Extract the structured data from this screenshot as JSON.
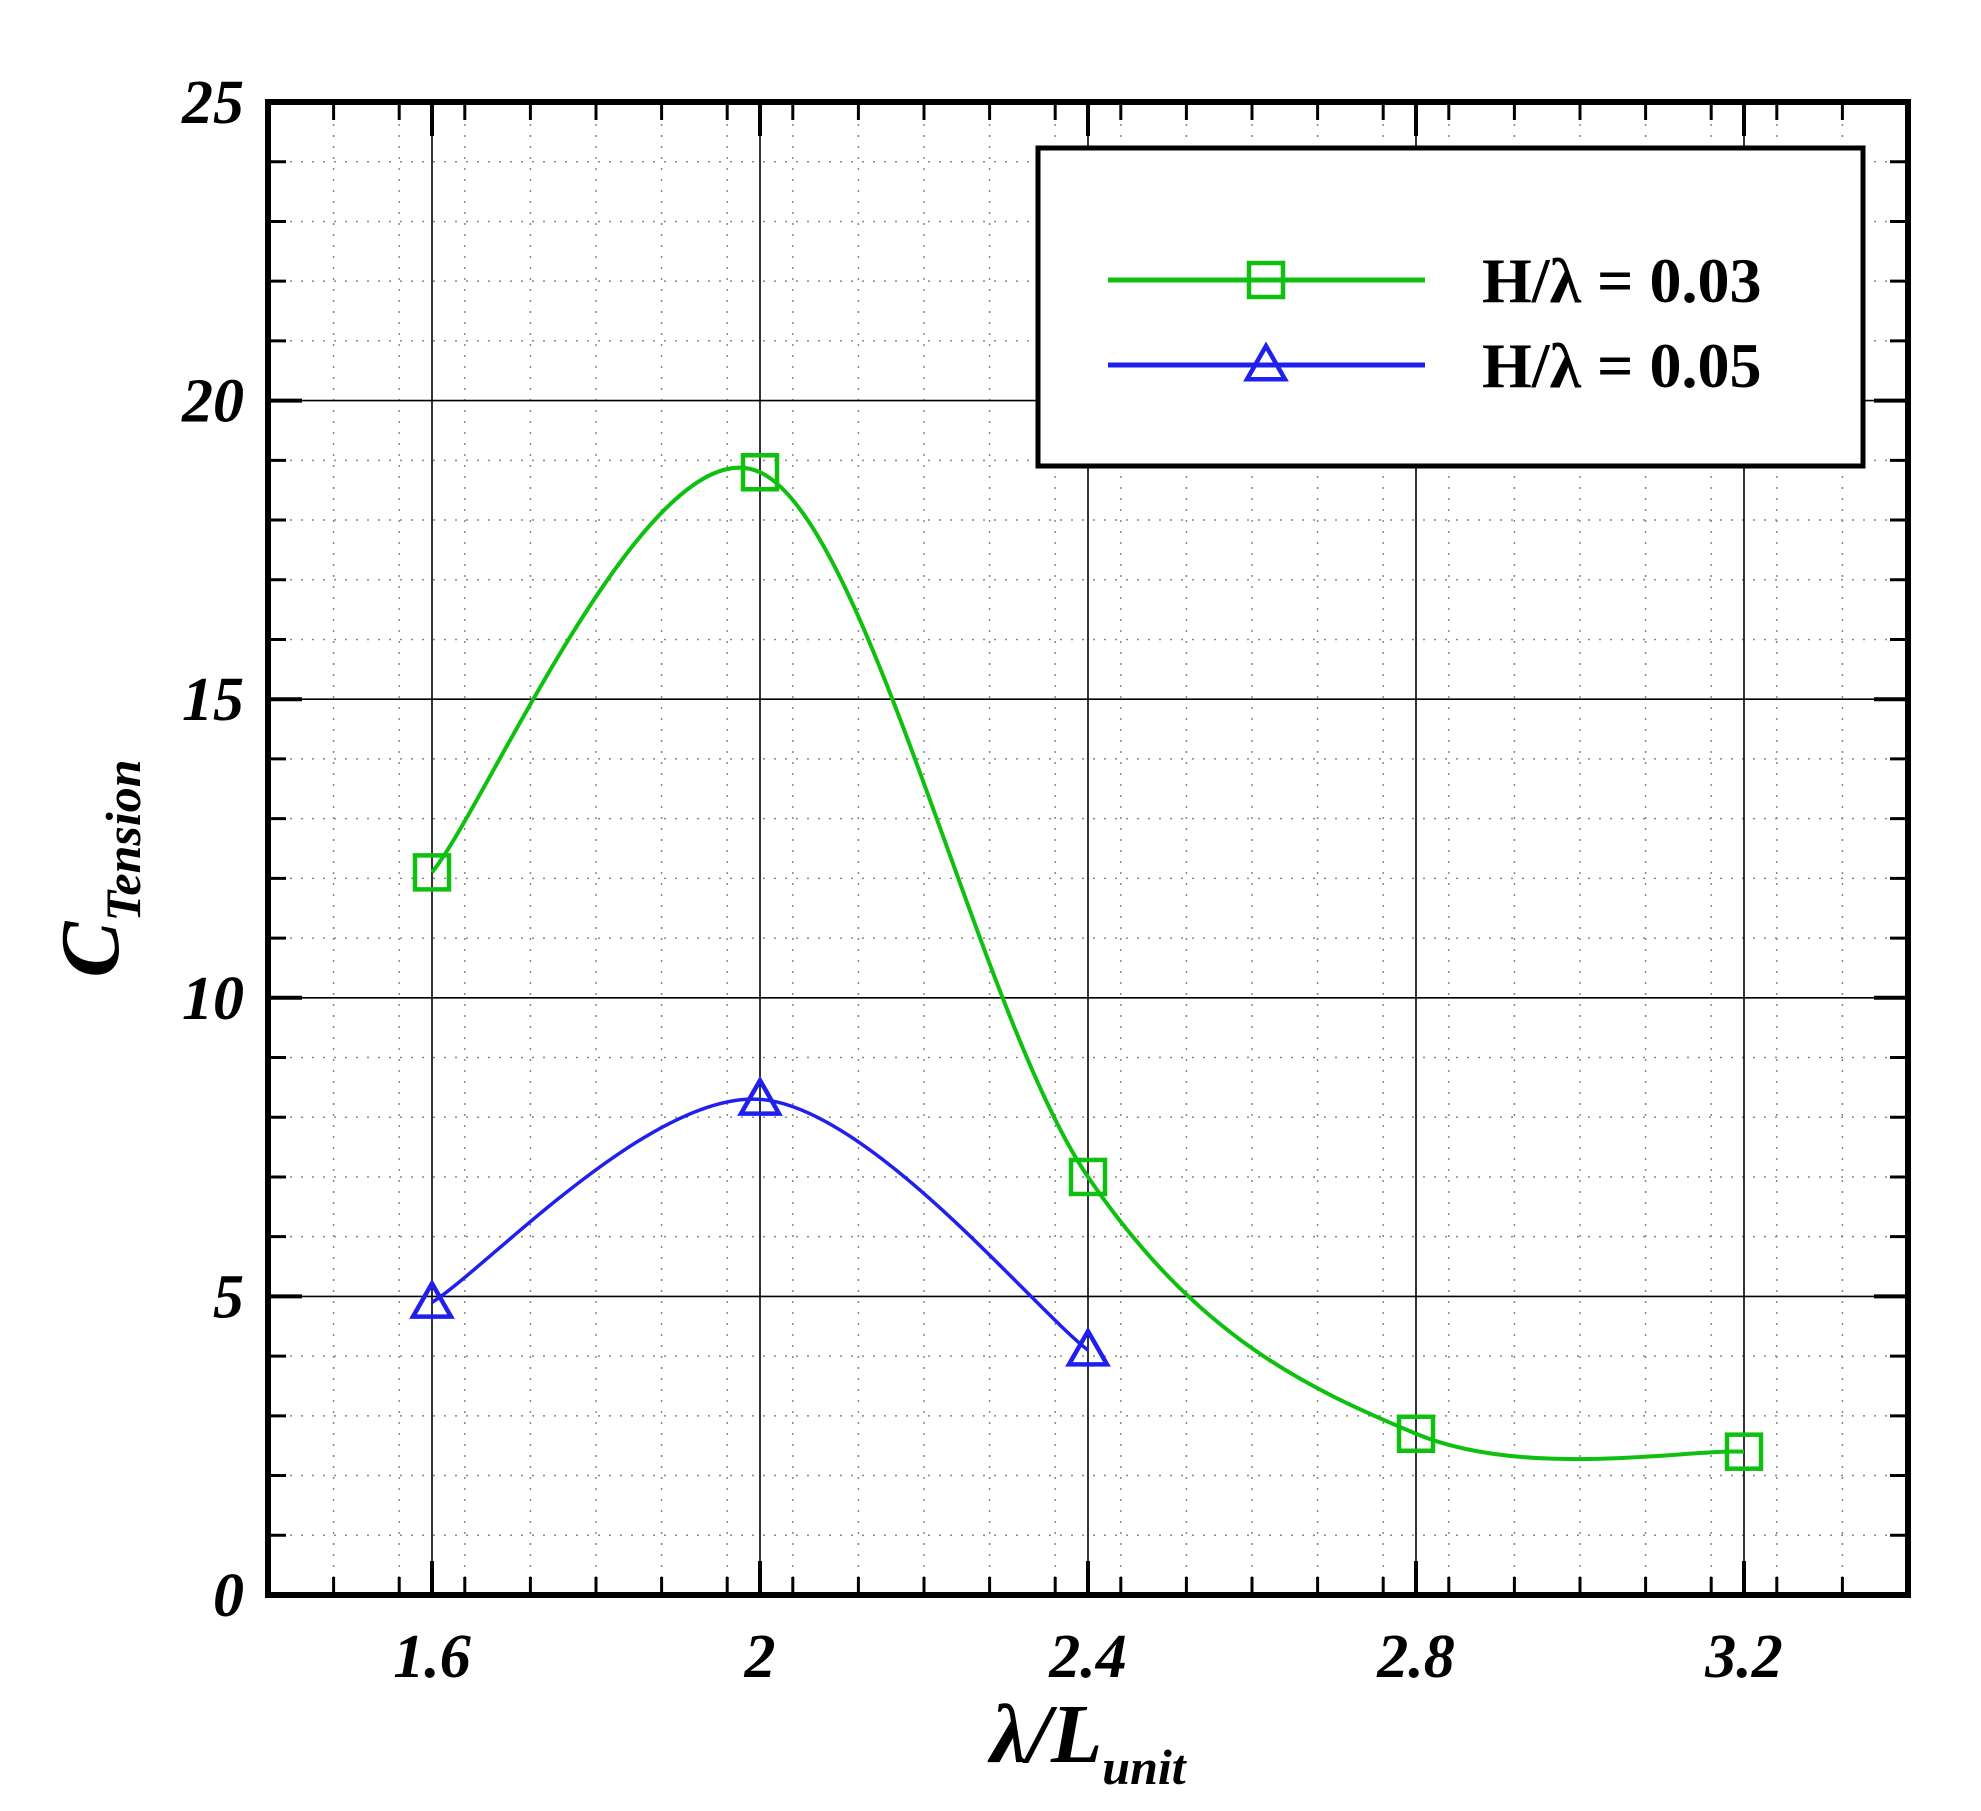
{
  "chart_data": {
    "type": "line",
    "xlabel": {
      "main": "λ/L",
      "sub": "unit"
    },
    "ylabel": {
      "main": "C",
      "sub": "Tension"
    },
    "xlim": [
      1.4,
      3.4
    ],
    "ylim": [
      0,
      25
    ],
    "x_ticks": [
      1.6,
      2,
      2.4,
      2.8,
      3.2
    ],
    "x_tick_labels": [
      "1.6",
      "2",
      "2.4",
      "2.8",
      "3.2"
    ],
    "y_ticks": [
      0,
      5,
      10,
      15,
      20,
      25
    ],
    "y_tick_labels": [
      "0",
      "5",
      "10",
      "15",
      "20",
      "25"
    ],
    "x_minor_step": 0.08,
    "y_minor_step": 1,
    "grid": true,
    "legend_position": "top-right",
    "series": [
      {
        "name": "H/λ = 0.03",
        "color": "#10c010",
        "marker": "square",
        "x": [
          1.6,
          2.0,
          2.4,
          2.8,
          3.2
        ],
        "y": [
          12.1,
          18.8,
          7.0,
          2.7,
          2.4
        ]
      },
      {
        "name": "H/λ = 0.05",
        "color": "#2020ee",
        "marker": "triangle",
        "x": [
          1.6,
          2.0,
          2.4
        ],
        "y": [
          4.9,
          8.3,
          4.1
        ]
      }
    ]
  }
}
